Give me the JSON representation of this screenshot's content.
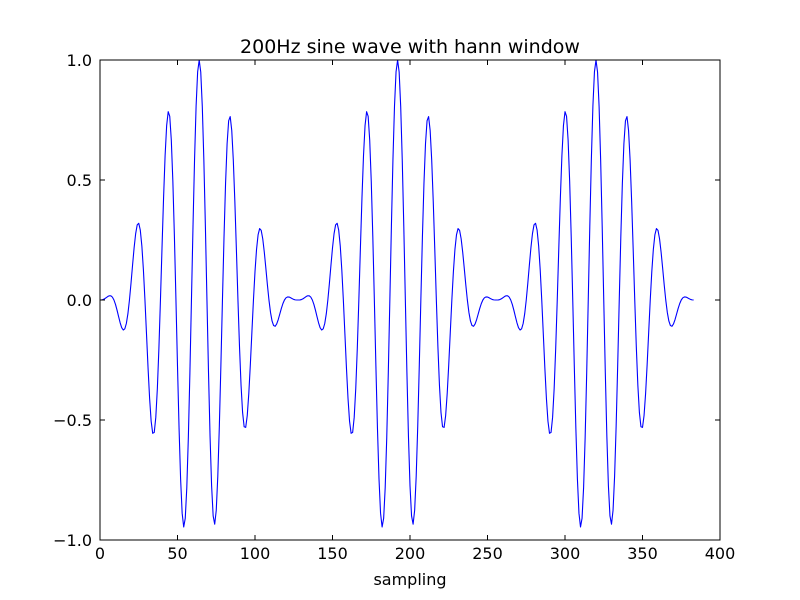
{
  "chart_data": {
    "type": "line",
    "title": "200Hz sine wave with hann window",
    "xlabel": "sampling",
    "ylabel": "",
    "xlim": [
      0,
      400
    ],
    "ylim": [
      -1.0,
      1.0
    ],
    "xticks": [
      0,
      50,
      100,
      150,
      200,
      250,
      300,
      350,
      400
    ],
    "xtick_labels": [
      "0",
      "50",
      "100",
      "150",
      "200",
      "250",
      "300",
      "350",
      "400"
    ],
    "yticks": [
      -1.0,
      -0.5,
      0.0,
      0.5,
      1.0
    ],
    "ytick_labels": [
      "−1.0",
      "−0.5",
      "0.0",
      "0.5",
      "1.0"
    ],
    "grid": false,
    "series": [
      {
        "color": "#0000ff",
        "signal": {
          "segments": 3,
          "segment_length": 128,
          "amplitude": 1.0,
          "cycle_samples": 20,
          "peak_sample": 64,
          "window": "hann"
        }
      }
    ]
  }
}
